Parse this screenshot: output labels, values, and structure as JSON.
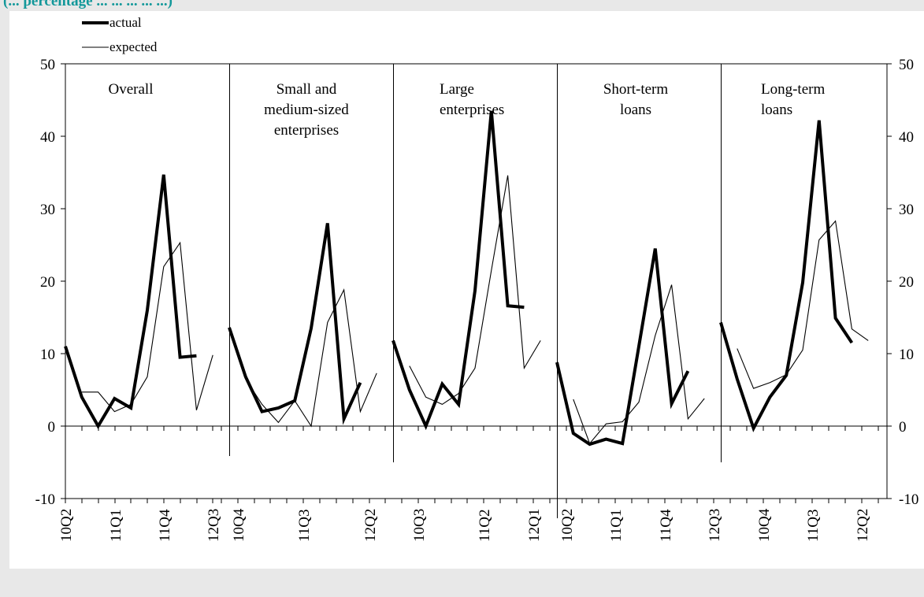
{
  "title": "(... percentage ... ... ... ... ...)",
  "chart_data": {
    "type": "line",
    "ylim": [
      -10,
      50
    ],
    "yticks": [
      -10,
      0,
      10,
      20,
      30,
      40,
      50
    ],
    "grid": false,
    "legend_placement": "top-left",
    "legend": [
      {
        "name": "actual",
        "style": "thick"
      },
      {
        "name": "expected",
        "style": "thin"
      }
    ],
    "panels": [
      {
        "label_lines": [
          "Overall"
        ],
        "x_labels": [
          "10Q2",
          "11Q1",
          "11Q4",
          "12Q3"
        ],
        "actual": [
          11,
          4,
          0,
          3.8,
          2.5,
          16,
          34.7,
          9.5,
          9.7
        ],
        "expected": [
          null,
          4.7,
          4.7,
          2,
          3,
          6.8,
          22,
          25.3,
          2.2,
          9.8
        ]
      },
      {
        "label_lines": [
          "Small and",
          "medium-sized",
          "enterprises"
        ],
        "x_labels": [
          "10Q4",
          "11Q3",
          "12Q2"
        ],
        "actual": [
          13.6,
          6.8,
          2,
          2.5,
          3.5,
          13.5,
          28,
          1,
          6
        ],
        "expected": [
          null,
          6.5,
          3,
          0.5,
          3.5,
          0,
          14.3,
          18.8,
          2,
          7.3
        ]
      },
      {
        "label_lines": [
          "Large",
          "enterprises"
        ],
        "x_labels": [
          "10Q3",
          "11Q2",
          "12Q1"
        ],
        "actual": [
          11.8,
          5,
          0,
          5.8,
          3,
          18.7,
          43.5,
          16.6,
          16.4
        ],
        "expected": [
          null,
          8.3,
          4,
          3,
          4.5,
          8,
          21.5,
          34.6,
          8,
          11.8
        ]
      },
      {
        "label_lines": [
          "Short-term",
          "loans"
        ],
        "x_labels": [
          "10Q2",
          "11Q1",
          "11Q4",
          "12Q3"
        ],
        "actual": [
          8.8,
          -1,
          -2.5,
          -1.8,
          -2.4,
          11,
          24.5,
          3.1,
          7.6
        ],
        "expected": [
          null,
          3.7,
          -2.4,
          0.3,
          0.6,
          3.3,
          12.5,
          19.5,
          1,
          3.8
        ]
      },
      {
        "label_lines": [
          "Long-term",
          "loans"
        ],
        "x_labels": [
          "10Q4",
          "11Q3",
          "12Q2"
        ],
        "actual": [
          14.3,
          6.5,
          -0.3,
          4,
          7,
          19.8,
          42.2,
          14.9,
          11.5
        ],
        "expected": [
          null,
          10.7,
          5.2,
          6,
          7.1,
          10.5,
          25.7,
          28.3,
          13.4,
          11.8
        ]
      }
    ]
  }
}
